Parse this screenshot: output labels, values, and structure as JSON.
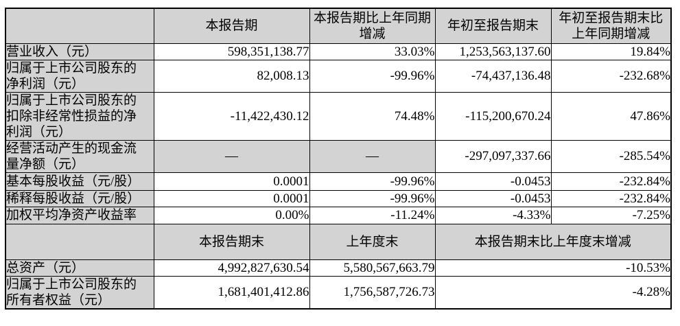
{
  "table": {
    "grid_color": "#000000",
    "shaded_cell_color": "#d3d3d3",
    "section1": {
      "headers": {
        "current_period": "本报告期",
        "current_period_change": "本报告期比上年同期\n增减",
        "ytd": "年初至报告期末",
        "ytd_change": "年初至报告期末比\n上年同期增减"
      },
      "rows": [
        {
          "label": "营业收入（元）",
          "current": "598,351,138.77",
          "current_change": "33.03%",
          "ytd": "1,253,563,137.60",
          "ytd_change": "19.84%"
        },
        {
          "label": "归属于上市公司股东的\n净利润（元）",
          "current": "82,008.13",
          "current_change": "-99.96%",
          "ytd": "-74,437,136.48",
          "ytd_change": "-232.68%"
        },
        {
          "label": "归属于上市公司股东的\n扣除非经常性损益的净\n利润（元）",
          "current": "-11,422,430.12",
          "current_change": "74.48%",
          "ytd": "-115,200,670.24",
          "ytd_change": "47.86%"
        },
        {
          "label": "经营活动产生的现金流\n量净额（元）",
          "current": "—",
          "current_change": "—",
          "ytd": "-297,097,337.66",
          "ytd_change": "-285.54%"
        },
        {
          "label": "基本每股收益（元/股）",
          "current": "0.0001",
          "current_change": "-99.96%",
          "ytd": "-0.0453",
          "ytd_change": "-232.84%"
        },
        {
          "label": "稀释每股收益（元/股）",
          "current": "0.0001",
          "current_change": "-99.96%",
          "ytd": "-0.0453",
          "ytd_change": "-232.84%"
        },
        {
          "label": "加权平均净资产收益率",
          "current": "0.00%",
          "current_change": "-11.24%",
          "ytd": "-4.33%",
          "ytd_change": "-7.25%"
        }
      ]
    },
    "section2": {
      "headers": {
        "period_end": "本报告期末",
        "prior_year_end": "上年度末",
        "end_change": "本报告期末比上年度末增减"
      },
      "rows": [
        {
          "label": "总资产（元）",
          "period_end": "4,992,827,630.54",
          "prior_year_end": "5,580,567,663.79",
          "change": "-10.53%"
        },
        {
          "label": "归属于上市公司股东的\n所有者权益（元）",
          "period_end": "1,681,401,412.86",
          "prior_year_end": "1,756,587,726.73",
          "change": "-4.28%"
        }
      ]
    }
  }
}
